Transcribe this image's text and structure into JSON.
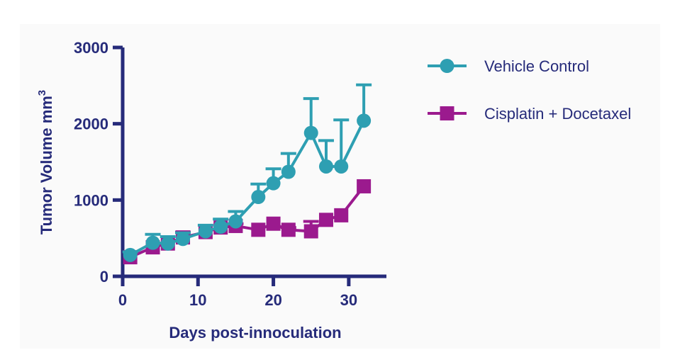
{
  "chart_data": {
    "type": "line",
    "xlabel": "Days post-innoculation",
    "ylabel": "Tumor Volume mm",
    "ylabel_superscript": "3",
    "xlim": [
      0,
      35
    ],
    "ylim": [
      0,
      3000
    ],
    "xticks": [
      0,
      10,
      20,
      30
    ],
    "yticks": [
      0,
      1000,
      2000,
      3000
    ],
    "grid": false,
    "legend_position": "right",
    "colors": {
      "axis": "#262b7a"
    },
    "series": [
      {
        "name": "Vehicle Control",
        "color": "#2e9fb2",
        "marker": "circle",
        "x": [
          1,
          4,
          6,
          8,
          11,
          13,
          15,
          18,
          20,
          22,
          25,
          27,
          29,
          32
        ],
        "y": [
          280,
          440,
          430,
          490,
          590,
          650,
          720,
          1040,
          1220,
          1370,
          1880,
          1440,
          1440,
          2040
        ],
        "error_upper": [
          40,
          110,
          90,
          80,
          80,
          100,
          130,
          170,
          190,
          240,
          450,
          340,
          610,
          470
        ]
      },
      {
        "name": "Cisplatin + Docetaxel",
        "color": "#9b1a8e",
        "marker": "square",
        "x": [
          1,
          4,
          6,
          8,
          11,
          13,
          15,
          18,
          20,
          22,
          25,
          27,
          29,
          32
        ],
        "y": [
          250,
          380,
          430,
          510,
          580,
          640,
          660,
          610,
          690,
          610,
          590,
          740,
          800,
          1180
        ],
        "error_upper": [
          0,
          0,
          0,
          70,
          0,
          0,
          30,
          0,
          0,
          30,
          130,
          0,
          0,
          0
        ]
      }
    ]
  }
}
